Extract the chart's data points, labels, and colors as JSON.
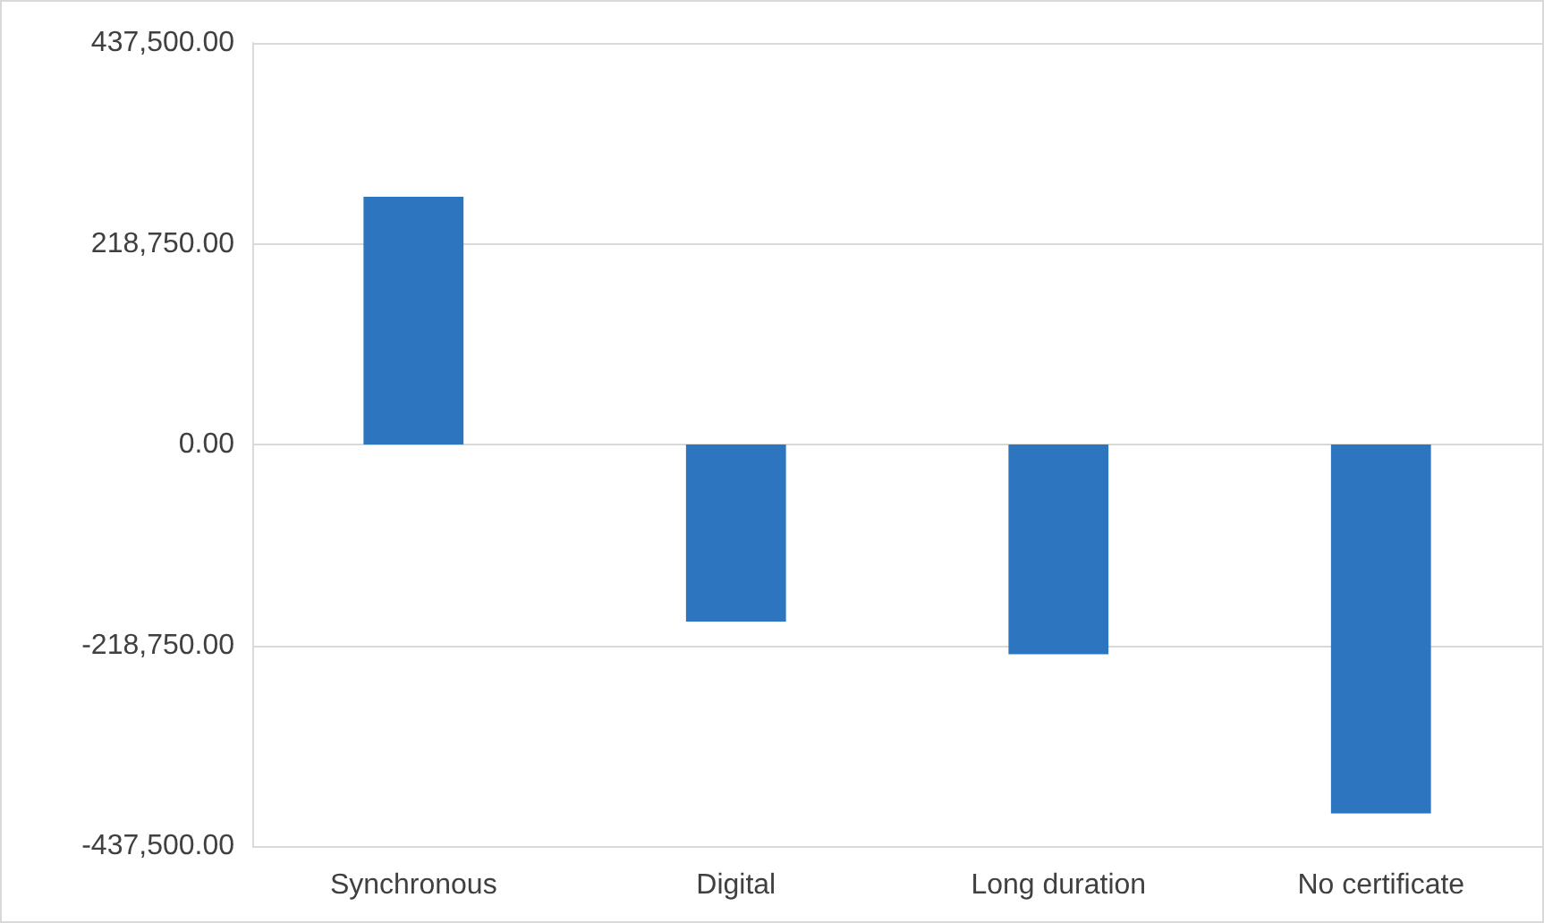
{
  "chart_data": {
    "type": "bar",
    "categories": [
      "Synchronous",
      "Digital",
      "Long duration",
      "No certificate"
    ],
    "values": [
      270000,
      -193000,
      -228500,
      -402000
    ],
    "color": "#2e75c0",
    "ylim": [
      -437500,
      437500
    ],
    "yticks": [
      {
        "value": -437500,
        "label": "-437,500.00"
      },
      {
        "value": -218750,
        "label": "-218,750.00"
      },
      {
        "value": 0,
        "label": "0.00"
      },
      {
        "value": 218750,
        "label": "218,750.00"
      },
      {
        "value": 437500,
        "label": "437,500.00"
      }
    ],
    "grid": "y"
  }
}
